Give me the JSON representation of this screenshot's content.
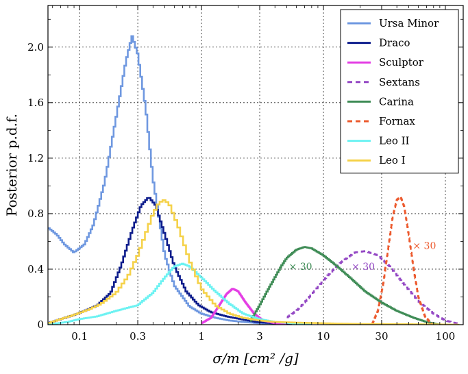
{
  "chart_data": {
    "type": "line",
    "title": "",
    "xlabel": "σ/m [cm² /g]",
    "ylabel": "Posterior p.d.f.",
    "xscale": "log",
    "xlim": [
      0.055,
      140
    ],
    "ylim": [
      0,
      2.3
    ],
    "grid": true,
    "legend_position": "top-right",
    "x_ticks": [
      0.1,
      0.3,
      1,
      3,
      10,
      30,
      100
    ],
    "x_tick_labels": [
      "0.1",
      "0.3",
      "1",
      "3",
      "10",
      "30",
      "100"
    ],
    "y_ticks": [
      0,
      0.4,
      0.8,
      1.2,
      1.6,
      2.0
    ],
    "y_tick_labels": [
      "0",
      "0.4",
      "0.8",
      "1.2",
      "1.6",
      "2.0"
    ],
    "series": [
      {
        "name": "Ursa Minor",
        "color": "#6f98e0",
        "dash": "solid",
        "x": [
          0.055,
          0.065,
          0.075,
          0.09,
          0.11,
          0.13,
          0.16,
          0.2,
          0.24,
          0.27,
          0.3,
          0.35,
          0.4,
          0.5,
          0.6,
          0.8,
          1.0,
          1.3,
          1.7,
          2.2,
          3,
          4,
          6
        ],
        "values": [
          0.7,
          0.65,
          0.58,
          0.52,
          0.58,
          0.72,
          1.02,
          1.5,
          1.9,
          2.08,
          1.95,
          1.55,
          1.05,
          0.5,
          0.28,
          0.13,
          0.08,
          0.05,
          0.03,
          0.02,
          0.01,
          0.005,
          0
        ]
      },
      {
        "name": "Draco",
        "color": "#0d1c8c",
        "dash": "solid",
        "x": [
          0.055,
          0.07,
          0.09,
          0.11,
          0.14,
          0.18,
          0.22,
          0.27,
          0.32,
          0.37,
          0.42,
          0.5,
          0.6,
          0.75,
          0.95,
          1.2,
          1.6,
          2.1,
          2.8,
          3.8,
          5,
          7
        ],
        "values": [
          0.01,
          0.04,
          0.07,
          0.1,
          0.14,
          0.23,
          0.43,
          0.68,
          0.86,
          0.92,
          0.86,
          0.65,
          0.42,
          0.24,
          0.14,
          0.09,
          0.06,
          0.04,
          0.02,
          0.01,
          0.005,
          0
        ]
      },
      {
        "name": "Sculptor",
        "color": "#e43ee4",
        "dash": "solid",
        "x": [
          1.0,
          1.2,
          1.4,
          1.6,
          1.8,
          2.0,
          2.3,
          2.7,
          3.2,
          4,
          5
        ],
        "values": [
          0.01,
          0.05,
          0.14,
          0.22,
          0.26,
          0.24,
          0.16,
          0.08,
          0.03,
          0.01,
          0
        ]
      },
      {
        "name": "Sextans",
        "color": "#9347c4",
        "dash": "dashed",
        "x": [
          5,
          6,
          7,
          9,
          11,
          14,
          18,
          22,
          28,
          35,
          45,
          60,
          80,
          100,
          130
        ],
        "values": [
          0.05,
          0.1,
          0.16,
          0.27,
          0.36,
          0.45,
          0.52,
          0.53,
          0.5,
          0.42,
          0.3,
          0.17,
          0.08,
          0.03,
          0.005
        ]
      },
      {
        "name": "Carina",
        "color": "#3f8c56",
        "dash": "solid",
        "x": [
          2.5,
          3,
          3.5,
          4,
          4.5,
          5,
          6,
          7,
          8,
          10,
          13,
          17,
          22,
          30,
          40,
          55,
          70,
          90
        ],
        "values": [
          0.02,
          0.14,
          0.25,
          0.34,
          0.42,
          0.48,
          0.54,
          0.56,
          0.55,
          0.5,
          0.42,
          0.33,
          0.24,
          0.16,
          0.1,
          0.05,
          0.02,
          0
        ]
      },
      {
        "name": "Fornax",
        "color": "#ec5a2e",
        "dash": "dashed",
        "x": [
          25,
          28,
          31,
          34,
          37,
          40,
          43,
          46,
          50,
          55,
          60,
          68,
          78
        ],
        "values": [
          0.0,
          0.1,
          0.3,
          0.55,
          0.78,
          0.9,
          0.92,
          0.85,
          0.65,
          0.4,
          0.2,
          0.06,
          0.0
        ]
      },
      {
        "name": "Leo II",
        "color": "#6cf2f2",
        "dash": "solid",
        "x": [
          0.055,
          0.08,
          0.1,
          0.14,
          0.2,
          0.3,
          0.4,
          0.5,
          0.6,
          0.7,
          0.8,
          1.0,
          1.3,
          1.7,
          2.2,
          3,
          4,
          5.5,
          8
        ],
        "values": [
          0.0,
          0.02,
          0.04,
          0.06,
          0.1,
          0.14,
          0.23,
          0.34,
          0.42,
          0.44,
          0.42,
          0.34,
          0.24,
          0.15,
          0.08,
          0.04,
          0.02,
          0.01,
          0
        ]
      },
      {
        "name": "Leo I",
        "color": "#f5d24a",
        "dash": "solid",
        "x": [
          0.055,
          0.07,
          0.09,
          0.12,
          0.15,
          0.2,
          0.25,
          0.3,
          0.35,
          0.4,
          0.45,
          0.5,
          0.55,
          0.65,
          0.8,
          1.0,
          1.3,
          1.7,
          2.2,
          3,
          4,
          6,
          10,
          20,
          60,
          130
        ],
        "values": [
          0.01,
          0.04,
          0.07,
          0.11,
          0.15,
          0.23,
          0.35,
          0.5,
          0.66,
          0.8,
          0.88,
          0.9,
          0.86,
          0.7,
          0.46,
          0.26,
          0.14,
          0.08,
          0.05,
          0.03,
          0.02,
          0.015,
          0.01,
          0.005,
          0.003,
          0
        ]
      }
    ],
    "annotations": [
      {
        "text": "× 30",
        "x": 5.2,
        "y": 0.42,
        "color": "#3f8c56"
      },
      {
        "text": "× 30",
        "x": 17,
        "y": 0.42,
        "color": "#9347c4"
      },
      {
        "text": "× 30",
        "x": 54,
        "y": 0.57,
        "color": "#ec5a2e"
      }
    ]
  }
}
